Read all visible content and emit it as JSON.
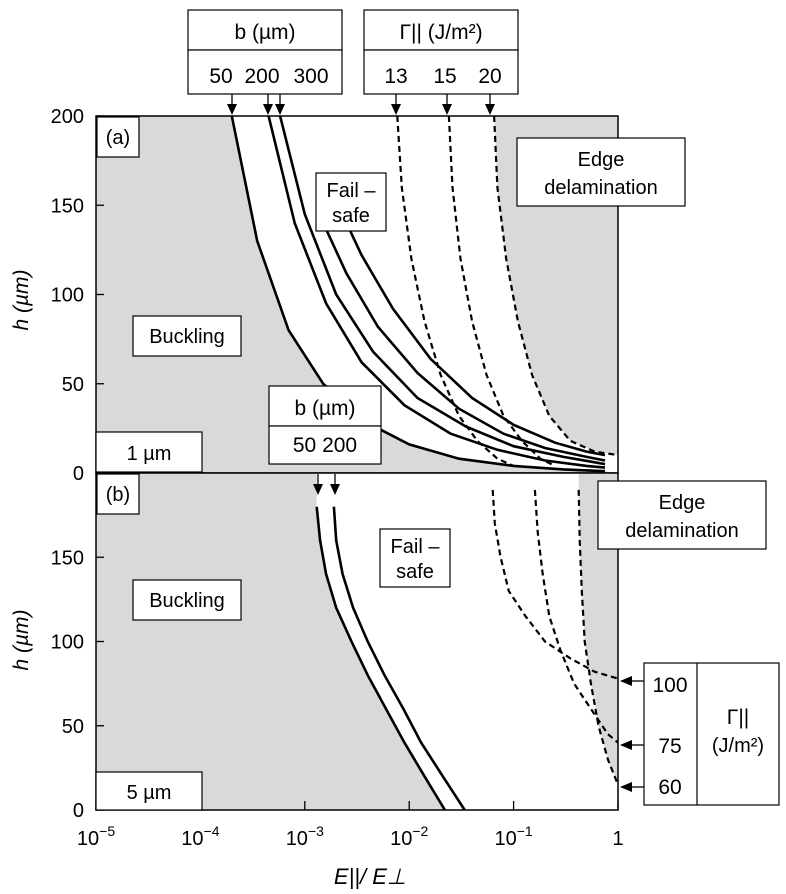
{
  "chart_data": [
    {
      "type": "line",
      "panel_label": "(a)",
      "xlabel": "E||/ E⊥",
      "ylabel": "h (µm)",
      "xscale": "log",
      "xlim": [
        1e-05,
        1
      ],
      "ylim": [
        0,
        200
      ],
      "yticks": [
        "0",
        "50",
        "100",
        "150",
        "200"
      ],
      "region_labels": [
        {
          "lines": [
            "Buckling"
          ]
        },
        {
          "lines": [
            "Fail –",
            "safe"
          ]
        },
        {
          "lines": [
            "Edge",
            "delamination"
          ]
        }
      ],
      "corner_label": "1 µm",
      "legends": [
        {
          "title": "b (µm)",
          "values": [
            "50",
            "200",
            "300"
          ]
        },
        {
          "title": "Γ||  (J/m²)",
          "values": [
            "13",
            "15",
            "20"
          ]
        },
        {
          "title": "b (µm)",
          "values": [
            "50 200"
          ]
        }
      ],
      "series": [
        {
          "group": "b (µm)",
          "label": "50",
          "style": "solid",
          "x": [
            0.0002,
            0.00035,
            0.0007,
            0.0015,
            0.004,
            0.01,
            0.03,
            0.1,
            0.3,
            0.75
          ],
          "y": [
            200,
            130,
            80,
            50,
            28,
            16,
            8,
            4,
            2,
            1
          ]
        },
        {
          "group": "b (µm)",
          "label": "200",
          "style": "solid",
          "x": [
            0.00045,
            0.0008,
            0.0016,
            0.0035,
            0.009,
            0.025,
            0.07,
            0.2,
            0.5,
            0.75
          ],
          "y": [
            200,
            140,
            95,
            62,
            38,
            22,
            13,
            7,
            4,
            3
          ]
        },
        {
          "group": "b (µm)",
          "label": "300",
          "style": "solid",
          "x": [
            0.00058,
            0.001,
            0.002,
            0.0045,
            0.012,
            0.035,
            0.1,
            0.3,
            0.6,
            0.75
          ],
          "y": [
            200,
            145,
            100,
            68,
            42,
            26,
            15,
            9,
            6,
            5
          ]
        },
        {
          "group": "b (µm)",
          "label": "",
          "style": "solid",
          "x": [
            0.0013,
            0.0025,
            0.005,
            0.012,
            0.03,
            0.08,
            0.2,
            0.5,
            0.75
          ],
          "y": [
            148,
            112,
            82,
            56,
            36,
            22,
            14,
            9,
            7
          ]
        },
        {
          "group": "b (µm)",
          "label": "",
          "style": "solid",
          "x": [
            0.0018,
            0.0035,
            0.007,
            0.016,
            0.04,
            0.1,
            0.25,
            0.5,
            0.75
          ],
          "y": [
            158,
            122,
            92,
            64,
            42,
            27,
            17,
            12,
            10
          ]
        },
        {
          "group": "Γ||  (J/m²)",
          "label": "13",
          "style": "dashed",
          "x": [
            0.0077,
            0.0085,
            0.0105,
            0.014,
            0.02,
            0.03,
            0.045,
            0.07,
            0.1
          ],
          "y": [
            200,
            160,
            120,
            85,
            55,
            32,
            18,
            8,
            4
          ]
        },
        {
          "group": "Γ||  (J/m²)",
          "label": "15",
          "style": "dashed",
          "x": [
            0.024,
            0.026,
            0.031,
            0.04,
            0.055,
            0.08,
            0.12,
            0.18,
            0.25
          ],
          "y": [
            200,
            160,
            120,
            85,
            55,
            32,
            18,
            8,
            4
          ]
        },
        {
          "group": "Γ||  (J/m²)",
          "label": "20",
          "style": "dashed",
          "x": [
            0.065,
            0.07,
            0.085,
            0.11,
            0.15,
            0.22,
            0.35,
            0.6,
            1
          ],
          "y": [
            200,
            160,
            120,
            85,
            55,
            32,
            18,
            12,
            10
          ]
        }
      ]
    },
    {
      "type": "line",
      "panel_label": "(b)",
      "xlabel": "E||/ E⊥",
      "ylabel": "h (µm)",
      "xscale": "log",
      "xlim": [
        1e-05,
        1
      ],
      "ylim": [
        0,
        200
      ],
      "xticks": [
        "10",
        "10",
        "10",
        "10",
        "10",
        "1"
      ],
      "xtick_exponents": [
        "−5",
        "−4",
        "−3",
        "−2",
        "−1",
        ""
      ],
      "yticks": [
        "0",
        "50",
        "100",
        "150"
      ],
      "region_labels": [
        {
          "lines": [
            "Buckling"
          ]
        },
        {
          "lines": [
            "Fail –",
            "safe"
          ]
        },
        {
          "lines": [
            "Edge",
            "delamination"
          ]
        }
      ],
      "corner_label": "5 µm",
      "legends": [
        {
          "title": "Γ||",
          "title2": "(J/m²)",
          "values": [
            "100",
            "75",
            "60"
          ]
        }
      ],
      "series": [
        {
          "group": "b (µm)",
          "label": "",
          "style": "solid",
          "x": [
            0.0013,
            0.0014,
            0.0016,
            0.002,
            0.0028,
            0.004,
            0.006,
            0.009,
            0.014,
            0.022
          ],
          "y": [
            180,
            160,
            140,
            120,
            100,
            80,
            60,
            40,
            20,
            0
          ]
        },
        {
          "group": "b (µm)",
          "label": "",
          "style": "solid",
          "x": [
            0.0019,
            0.002,
            0.0023,
            0.0029,
            0.004,
            0.0058,
            0.0088,
            0.013,
            0.021,
            0.034
          ],
          "y": [
            180,
            160,
            140,
            120,
            100,
            80,
            60,
            40,
            20,
            0
          ]
        },
        {
          "group": "Γ||  (J/m²)",
          "label": "100",
          "style": "dashed",
          "x": [
            0.063,
            0.066,
            0.075,
            0.09,
            0.13,
            0.2,
            0.35,
            0.6,
            1
          ],
          "y": [
            190,
            170,
            150,
            130,
            115,
            100,
            90,
            82,
            78
          ]
        },
        {
          "group": "Γ||  (J/m²)",
          "label": "75",
          "style": "dashed",
          "x": [
            0.16,
            0.17,
            0.19,
            0.22,
            0.28,
            0.38,
            0.55,
            0.8,
            1
          ],
          "y": [
            190,
            165,
            140,
            115,
            95,
            75,
            60,
            45,
            40
          ]
        },
        {
          "group": "Γ||  (J/m²)",
          "label": "60",
          "style": "dashed",
          "x": [
            0.42,
            0.43,
            0.45,
            0.48,
            0.55,
            0.65,
            0.8,
            1
          ],
          "y": [
            190,
            160,
            130,
            100,
            75,
            50,
            30,
            15
          ]
        }
      ]
    }
  ]
}
